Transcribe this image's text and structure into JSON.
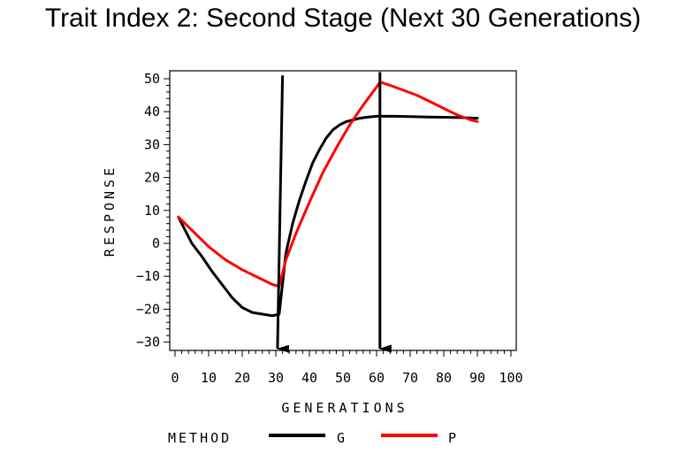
{
  "chart_data": {
    "type": "line",
    "title": "Trait Index 2: Second Stage (Next 30 Generations)",
    "xlabel": "GENERATIONS",
    "ylabel": "RESPONSE",
    "xlim": [
      0,
      100
    ],
    "ylim": [
      -32,
      53
    ],
    "xticks": [
      0,
      10,
      20,
      30,
      40,
      50,
      60,
      70,
      80,
      90,
      100
    ],
    "yticks": [
      -30,
      -20,
      -10,
      0,
      10,
      20,
      30,
      40,
      50
    ],
    "grid": false,
    "legend": {
      "title": "METHOD",
      "placement": "bottom"
    },
    "series": [
      {
        "name": "G",
        "color": "#000000",
        "x": [
          1,
          3,
          5,
          8,
          11,
          14,
          17,
          20,
          23,
          26,
          29,
          31,
          33,
          35,
          37,
          39,
          41,
          43,
          45,
          47,
          49,
          51,
          53,
          55,
          57,
          60,
          65,
          70,
          75,
          80,
          85,
          90
        ],
        "y": [
          8,
          4,
          0,
          -4,
          -8.5,
          -12.5,
          -16.5,
          -19.5,
          -21,
          -21.5,
          -22,
          -21.5,
          -3,
          6,
          13,
          19,
          24.5,
          28.5,
          32,
          34.5,
          36,
          37,
          37.5,
          38,
          38.3,
          38.6,
          38.6,
          38.5,
          38.4,
          38.3,
          38.2,
          38
        ]
      },
      {
        "name": "P",
        "color": "#ff0000",
        "x": [
          1,
          5,
          10,
          15,
          20,
          25,
          29,
          31,
          33,
          36,
          40,
          44,
          48,
          52,
          56,
          60,
          61,
          64,
          68,
          72,
          76,
          80,
          84,
          88,
          90
        ],
        "y": [
          8,
          4,
          -1,
          -5,
          -8,
          -10.5,
          -12.5,
          -13,
          -5,
          3,
          12.5,
          21.5,
          29,
          36,
          42,
          47.5,
          49,
          48,
          46.5,
          45,
          43,
          41,
          39,
          37.5,
          37
        ]
      }
    ],
    "annotations": [
      {
        "type": "arrow",
        "label": "",
        "x_start": 32,
        "y_start": 51,
        "x_end": 30.5,
        "y_end": -32
      },
      {
        "type": "arrow",
        "label": "",
        "x_start": 61,
        "y_start": 52,
        "x_end": 61,
        "y_end": -32
      }
    ]
  }
}
